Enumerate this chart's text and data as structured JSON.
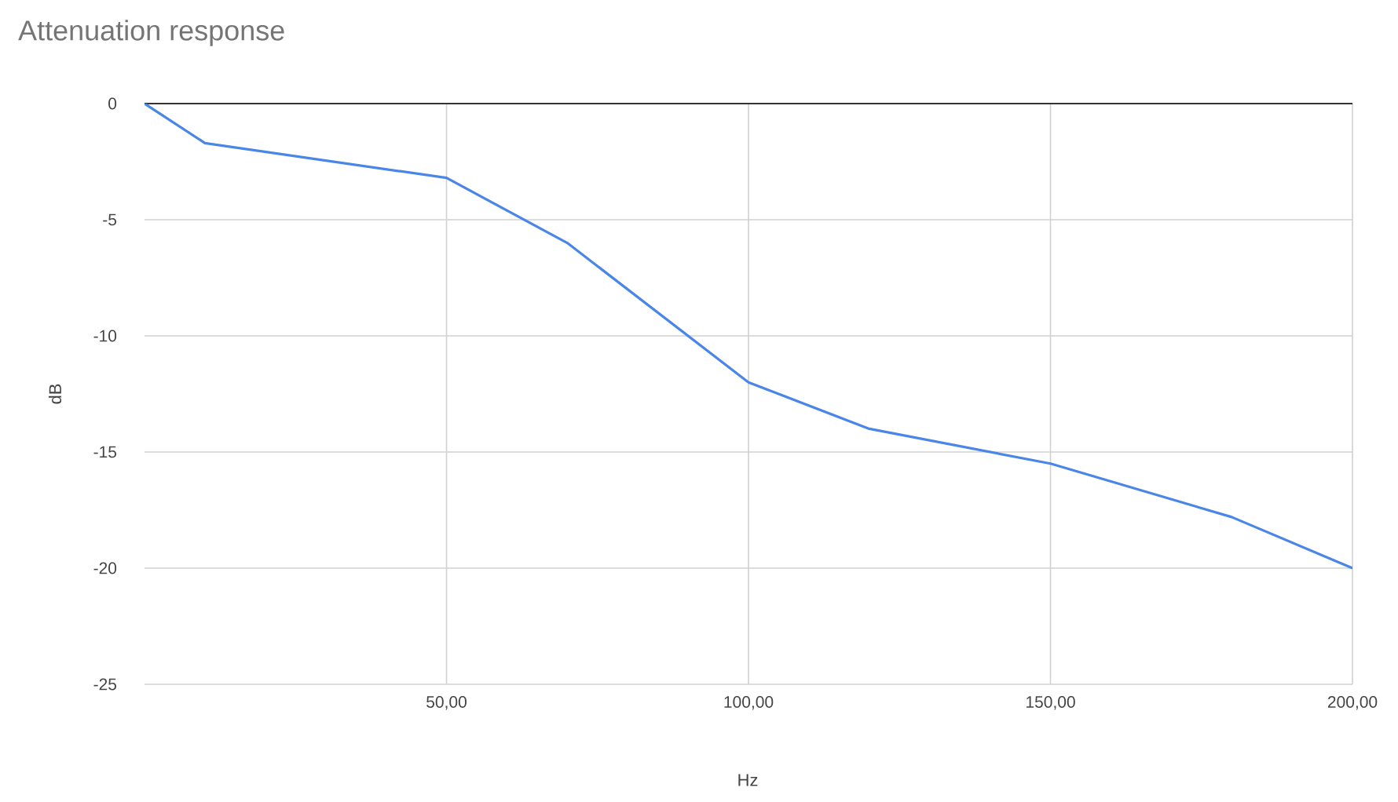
{
  "chart_data": {
    "type": "line",
    "title": "Attenuation response",
    "xlabel": "Hz",
    "ylabel": "dB",
    "x": [
      0,
      10,
      50,
      70,
      100,
      120,
      150,
      180,
      200
    ],
    "series": [
      {
        "color": "#4a86e8",
        "values": [
          0,
          -1.7,
          -3.2,
          -6,
          -12,
          -14,
          -15.5,
          -17.8,
          -20
        ]
      }
    ],
    "xlim": [
      0,
      200
    ],
    "xticks": [
      {
        "value": 50,
        "label": "50,00"
      },
      {
        "value": 100,
        "label": "100,00"
      },
      {
        "value": 150,
        "label": "150,00"
      },
      {
        "value": 200,
        "label": "200,00"
      }
    ],
    "ylim": [
      -25,
      0
    ],
    "yticks": [
      -25,
      -20,
      -15,
      -10,
      -5,
      0
    ],
    "grid": true,
    "legend": false,
    "marker": "none",
    "line_style": "solid"
  }
}
